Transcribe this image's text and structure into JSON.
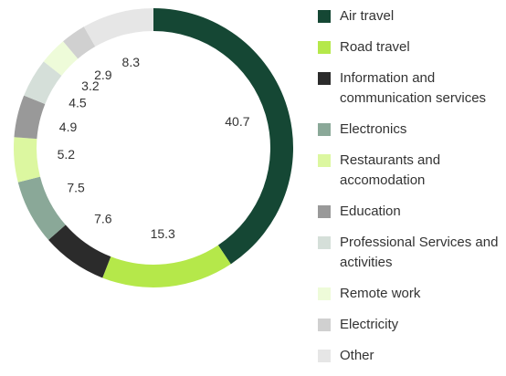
{
  "chart_data": {
    "type": "donut",
    "categories": [
      "Air travel",
      "Road travel",
      "Information and communication services",
      "Electronics",
      "Restaurants and accomodation",
      "Education",
      "Professional Services and activities",
      "Remote work",
      "Electricity",
      "Other"
    ],
    "values": [
      40.7,
      15.3,
      7.6,
      7.5,
      5.2,
      4.9,
      4.5,
      3.2,
      2.9,
      8.3
    ],
    "colors": [
      "#154734",
      "#b5e84a",
      "#2b2b2b",
      "#8aa898",
      "#dcf7a0",
      "#999999",
      "#d5dfd9",
      "#eefbd9",
      "#d0d0d0",
      "#e6e6e6"
    ],
    "legend": "right"
  }
}
